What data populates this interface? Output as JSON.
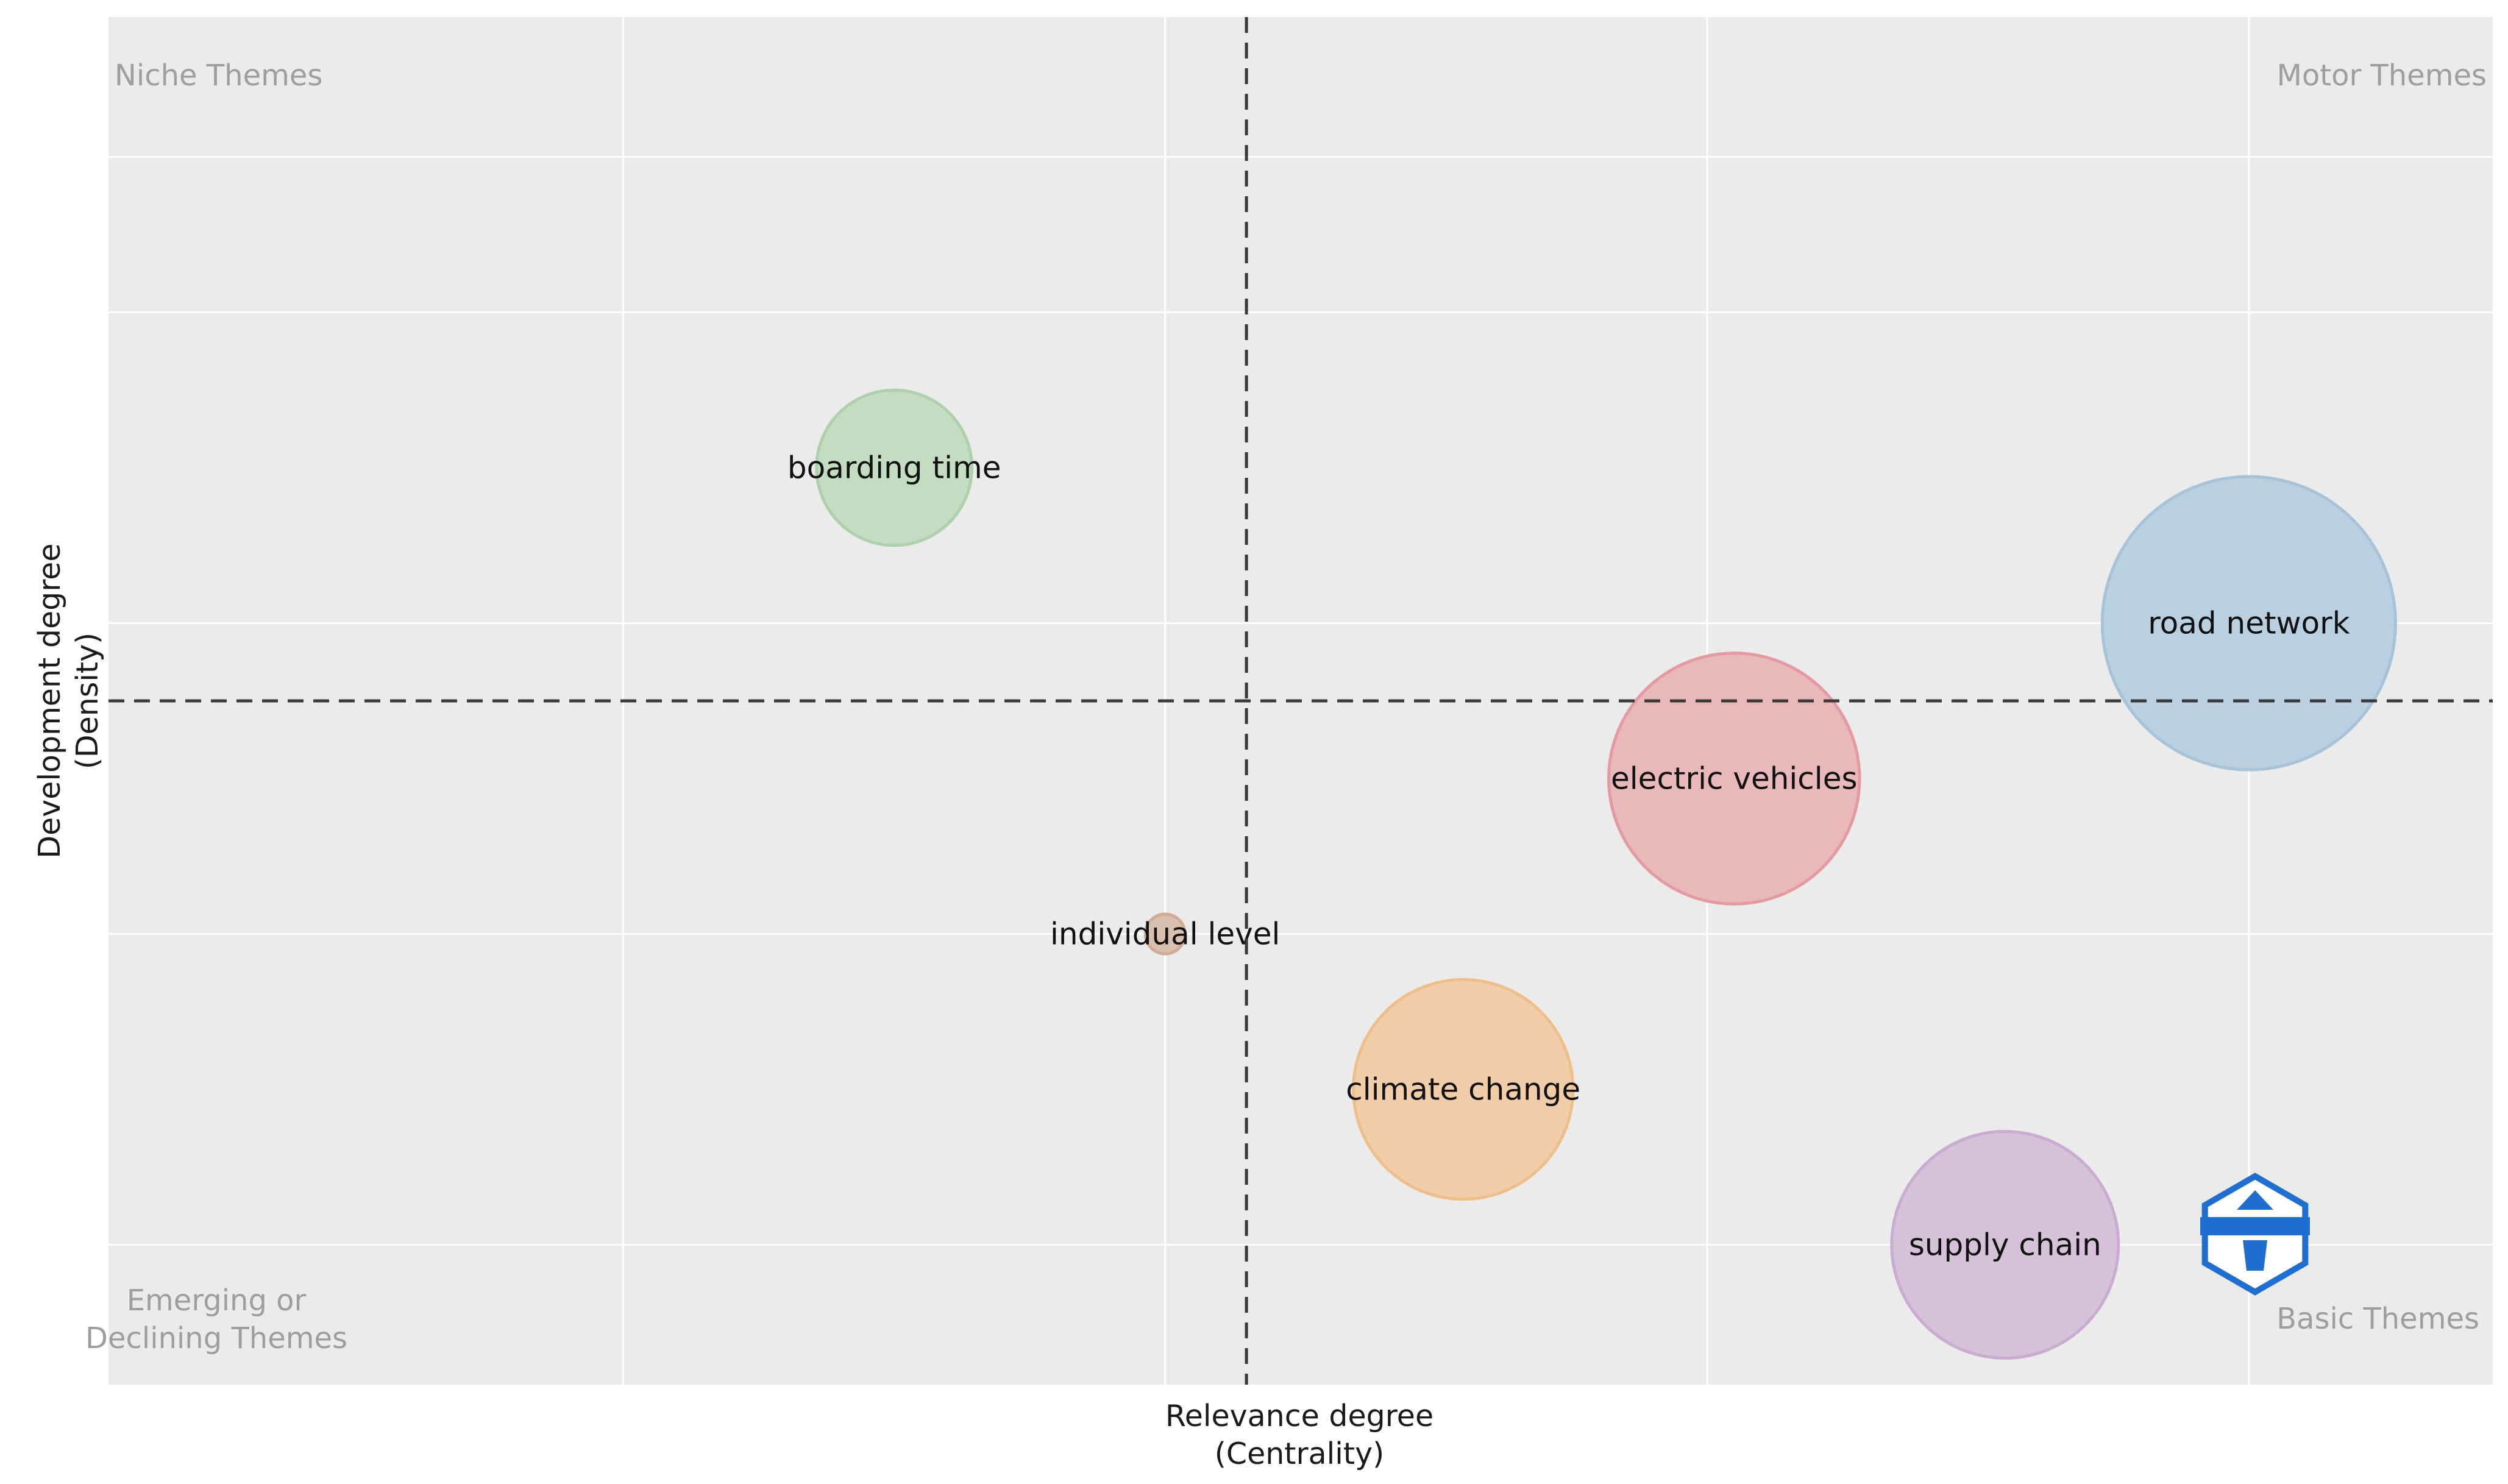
{
  "chart_data": {
    "type": "scatter",
    "title": "",
    "xlabel": [
      "Relevance degree",
      "(Centrality)"
    ],
    "ylabel": [
      "Development degree",
      "(Density)"
    ],
    "xlim": [
      0,
      4.4
    ],
    "ylim": [
      0,
      4.4
    ],
    "grid": true,
    "ref_lines": {
      "x": 2.1,
      "y": 2.2
    },
    "quadrant_labels": {
      "top_left": "Niche Themes",
      "top_right": "Motor Themes",
      "bottom_left": [
        "Emerging or",
        "Declining Themes"
      ],
      "bottom_right": "Basic Themes"
    },
    "points": [
      {
        "label": "boarding time",
        "x": 1.45,
        "y": 2.95,
        "size": 2.3,
        "color": "#c3dcc2",
        "edge": "#aed0ad"
      },
      {
        "label": "road network",
        "x": 3.95,
        "y": 2.45,
        "size": 8.2,
        "color": "#bacfdf",
        "edge": "#a7c3da"
      },
      {
        "label": "electric vehicles",
        "x": 3.0,
        "y": 1.95,
        "size": 6.0,
        "color": "#e8b8ba",
        "edge": "#e49aa0"
      },
      {
        "label": "individual level",
        "x": 1.95,
        "y": 1.45,
        "size": 0.15,
        "color": "#d9bfad",
        "edge": "#d0ab95"
      },
      {
        "label": "climate change",
        "x": 2.5,
        "y": 0.95,
        "size": 4.6,
        "color": "#f1cda9",
        "edge": "#efbf8b"
      },
      {
        "label": "supply chain",
        "x": 3.5,
        "y": 0.45,
        "size": 4.9,
        "color": "#d5c2d9",
        "edge": "#c9acd0"
      }
    ]
  },
  "colors": {
    "panel": "#ebebeb",
    "grid": "#ffffff",
    "refline": "#3a3a3a",
    "watermark": "#1e6fd0"
  },
  "watermark_icon": "bibliometrix-logo-icon"
}
